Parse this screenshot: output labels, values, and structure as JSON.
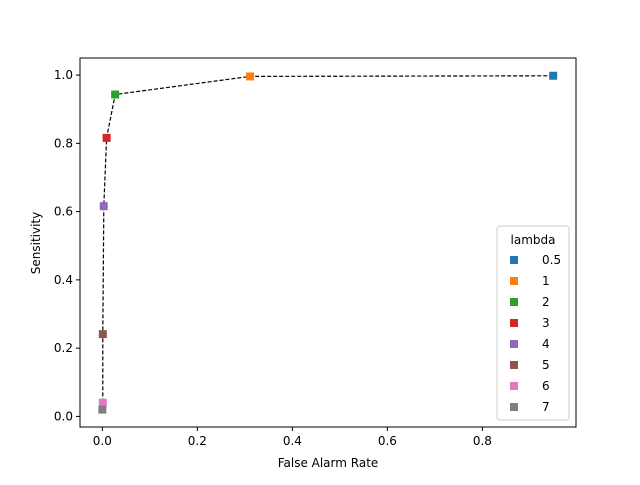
{
  "chart_data": {
    "type": "scatter",
    "xlabel": "False Alarm Rate",
    "ylabel": "Sensitivity",
    "xlim": [
      -0.047,
      0.997
    ],
    "ylim": [
      -0.031,
      1.05
    ],
    "xticks": [
      "0.0",
      "0.2",
      "0.4",
      "0.6",
      "0.8"
    ],
    "xtick_values": [
      0.0,
      0.2,
      0.4,
      0.6,
      0.8
    ],
    "yticks": [
      "0.0",
      "0.2",
      "0.4",
      "0.6",
      "0.8",
      "1.0"
    ],
    "ytick_values": [
      0.0,
      0.2,
      0.4,
      0.6,
      0.8,
      1.0
    ],
    "grid": false,
    "legend": {
      "title": "lambda",
      "placement": "lower-right"
    },
    "connecting_line": {
      "style": "dashed",
      "color": "#000000"
    },
    "series": [
      {
        "name": "0.5",
        "color": "#1f77b4",
        "x": 0.949,
        "y": 0.998
      },
      {
        "name": "1",
        "color": "#ff7f0e",
        "x": 0.311,
        "y": 0.996
      },
      {
        "name": "2",
        "color": "#2ca02c",
        "x": 0.027,
        "y": 0.943
      },
      {
        "name": "3",
        "color": "#d62728",
        "x": 0.009,
        "y": 0.816
      },
      {
        "name": "4",
        "color": "#9467bd",
        "x": 0.003,
        "y": 0.616
      },
      {
        "name": "5",
        "color": "#8c564b",
        "x": 0.001,
        "y": 0.241
      },
      {
        "name": "6",
        "color": "#e377c2",
        "x": 0.001,
        "y": 0.04
      },
      {
        "name": "7",
        "color": "#7f7f7f",
        "x": 0.0,
        "y": 0.02
      }
    ]
  }
}
